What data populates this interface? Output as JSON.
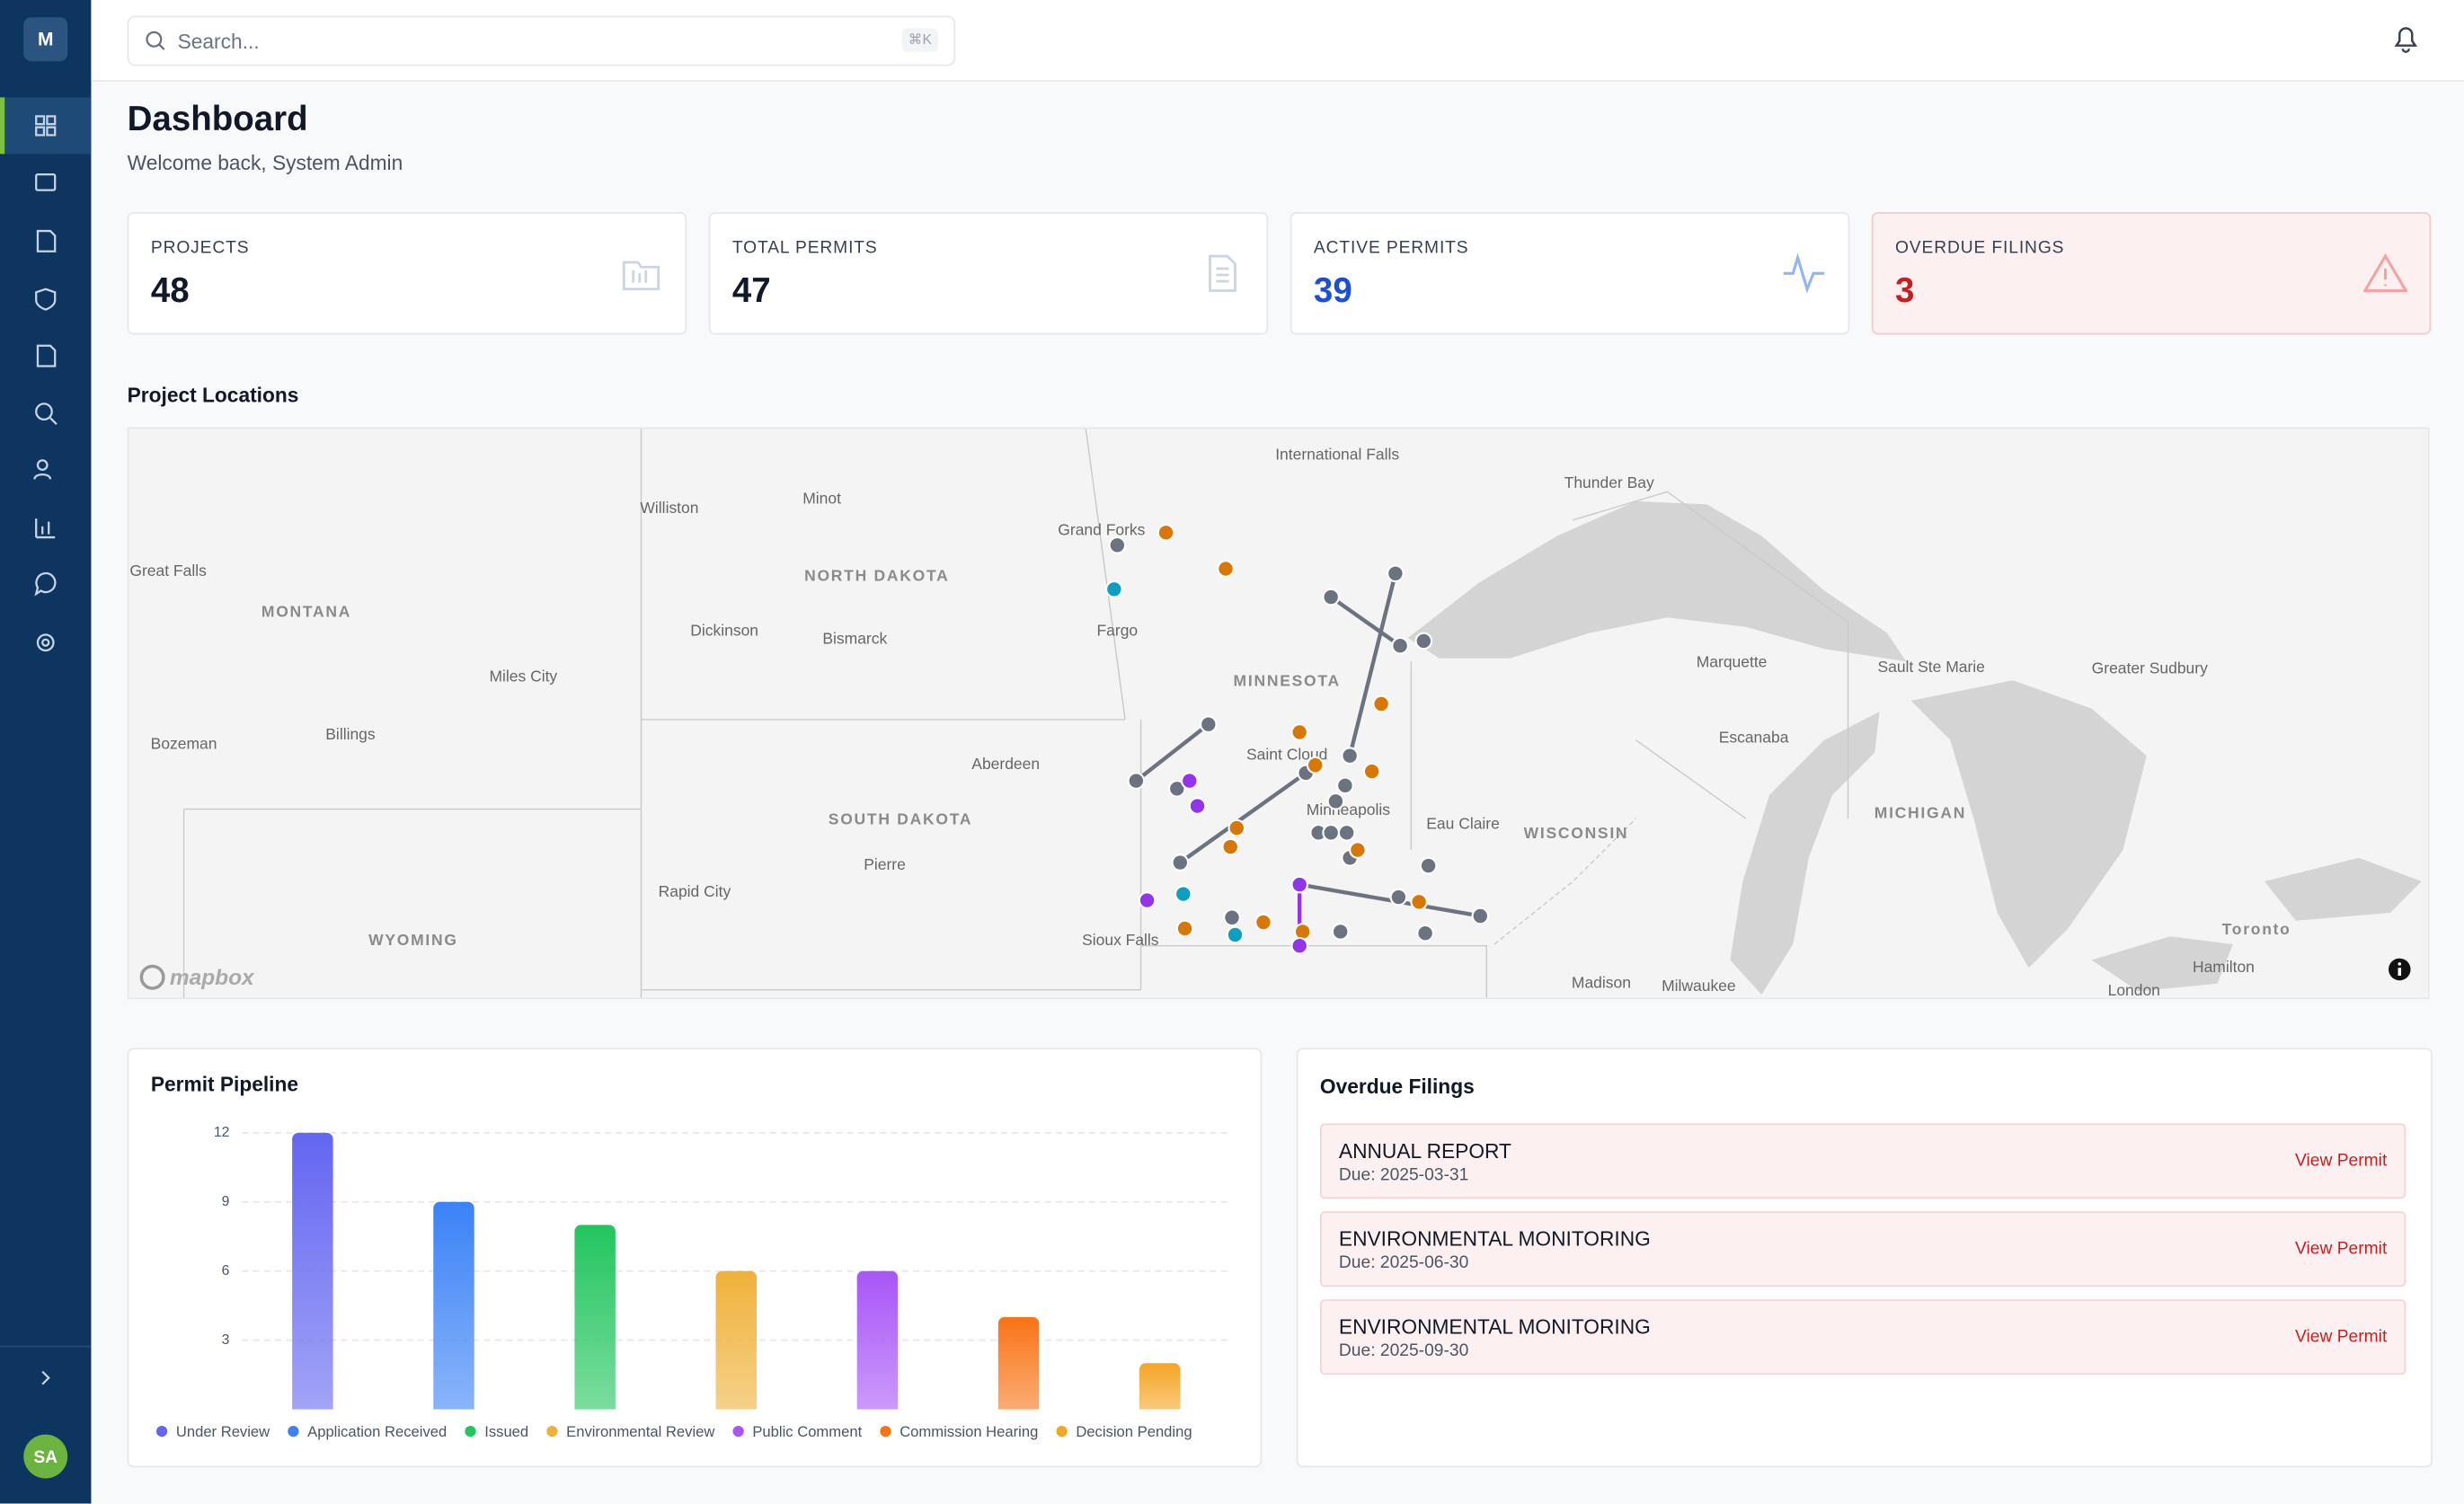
{
  "sidebar": {
    "logo": "M",
    "avatar": "SA"
  },
  "search": {
    "placeholder": "Search...",
    "shortcut": "⌘K"
  },
  "header": {
    "title": "Dashboard",
    "subtitle": "Welcome back, System Admin"
  },
  "stats": [
    {
      "label": "PROJECTS",
      "value": "48"
    },
    {
      "label": "TOTAL PERMITS",
      "value": "47"
    },
    {
      "label": "ACTIVE PERMITS",
      "value": "39"
    },
    {
      "label": "OVERDUE FILINGS",
      "value": "3"
    }
  ],
  "map": {
    "title": "Project Locations",
    "attribution": "mapbox",
    "labels": [
      "International Falls",
      "Thunder Bay",
      "Williston",
      "Minot",
      "Grand Forks",
      "NORTH DAKOTA",
      "Great Falls",
      "MONTANA",
      "Dickinson",
      "Bismarck",
      "Fargo",
      "MINNESOTA",
      "Marquette",
      "Sault Ste Marie",
      "Greater Sudbury",
      "Miles City",
      "Billings",
      "Bozeman",
      "Aberdeen",
      "Saint Cloud",
      "Escanaba",
      "Minneapolis",
      "Eau Claire",
      "SOUTH DAKOTA",
      "Pierre",
      "WISCONSIN",
      "MICHIGAN",
      "Rapid City",
      "WYOMING",
      "Sioux Falls",
      "Madison",
      "Milwaukee",
      "Toronto",
      "Hamilton",
      "London"
    ]
  },
  "chart_data": {
    "type": "bar",
    "title": "Permit Pipeline",
    "categories": [
      "Under Review",
      "Application Received",
      "Issued",
      "Environmental Review",
      "Public Comment",
      "Commission Hearing",
      "Decision Pending"
    ],
    "values": [
      12,
      9,
      8,
      6,
      6,
      4,
      2
    ],
    "colors": [
      "#6366f1",
      "#3b82f6",
      "#22c55e",
      "#f0b13a",
      "#a855f7",
      "#f97316",
      "#f5a524"
    ],
    "ylim": [
      0,
      12
    ],
    "yticks": [
      3,
      6,
      9,
      12
    ],
    "grid": true
  },
  "overdue": {
    "title": "Overdue Filings",
    "items": [
      {
        "name": "ANNUAL REPORT",
        "due": "Due: 2025-03-31",
        "action": "View Permit"
      },
      {
        "name": "ENVIRONMENTAL MONITORING",
        "due": "Due: 2025-06-30",
        "action": "View Permit"
      },
      {
        "name": "ENVIRONMENTAL MONITORING",
        "due": "Due: 2025-09-30",
        "action": "View Permit"
      }
    ]
  }
}
